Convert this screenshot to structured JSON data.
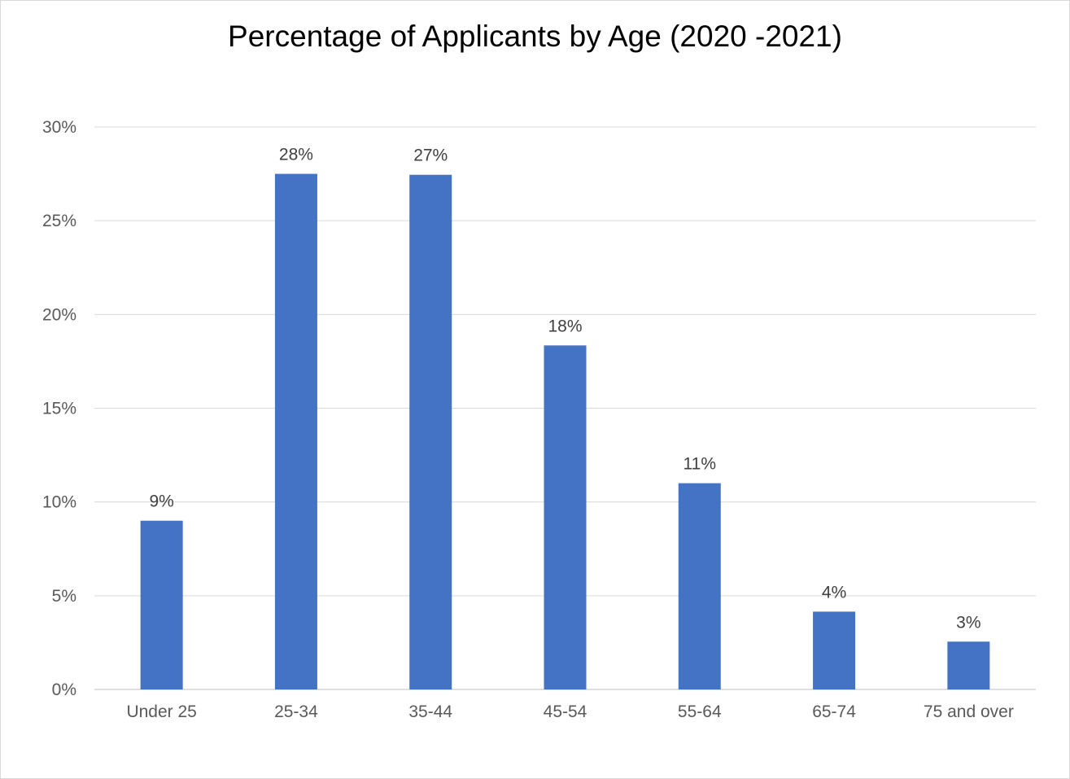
{
  "chart_data": {
    "type": "bar",
    "title": "Percentage of Applicants by Age (2020 -2021)",
    "categories": [
      "Under 25",
      "25-34",
      "35-44",
      "45-54",
      "55-64",
      "65-74",
      "75 and over"
    ],
    "values": [
      9.0,
      27.5,
      27.45,
      18.35,
      11.0,
      4.15,
      2.55
    ],
    "data_labels": [
      "9%",
      "28%",
      "27%",
      "18%",
      "11%",
      "4%",
      "3%"
    ],
    "ylim": [
      0,
      30
    ],
    "yticks": [
      0,
      5,
      10,
      15,
      20,
      25,
      30
    ],
    "ytick_labels": [
      "0%",
      "5%",
      "10%",
      "15%",
      "20%",
      "25%",
      "30%"
    ],
    "xlabel": "",
    "ylabel": "",
    "grid": true,
    "legend": "none",
    "colors": {
      "bar": "#4472C4",
      "grid": "#d9d9d9",
      "axis": "#bfbfbf"
    }
  }
}
